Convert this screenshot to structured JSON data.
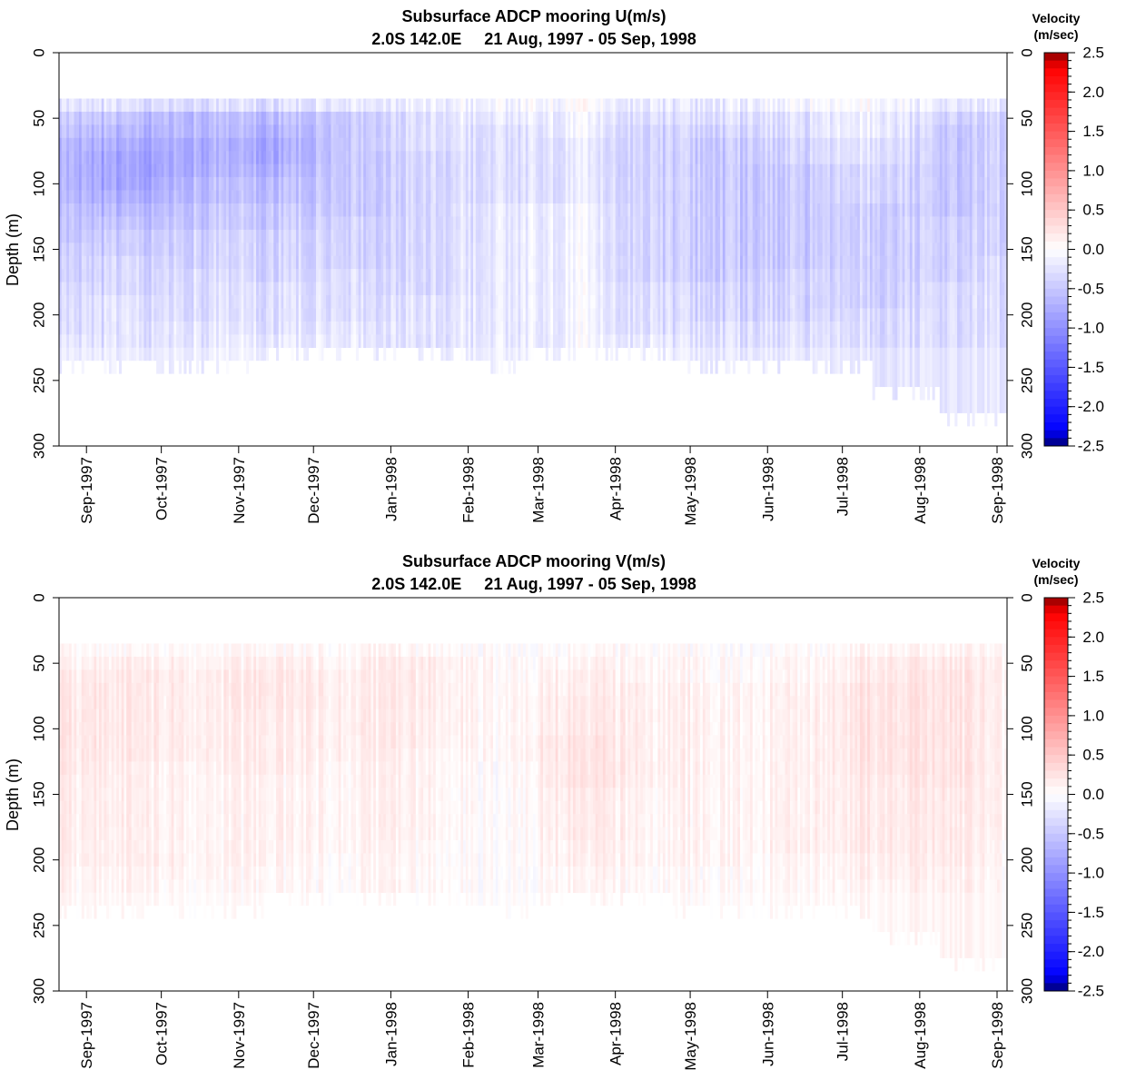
{
  "chart_data": [
    {
      "type": "heatmap",
      "component": "U",
      "title": "Subsurface ADCP mooring U(m/s)",
      "subtitle": "2.0S 142.0E     21 Aug, 1997 - 05 Sep, 1998",
      "ylabel": "Depth (m)",
      "xlabel": "",
      "date_range": [
        "1997-08-21",
        "1998-09-05"
      ],
      "ylim": [
        300,
        0
      ],
      "yticks": [
        0,
        50,
        100,
        150,
        200,
        250,
        300
      ],
      "xticks": [
        "Sep-1997",
        "Oct-1997",
        "Nov-1997",
        "Dec-1997",
        "Jan-1998",
        "Feb-1998",
        "Mar-1998",
        "Apr-1998",
        "May-1998",
        "Jun-1998",
        "Jul-1998",
        "Aug-1998",
        "Sep-1998"
      ],
      "xtick_dates": [
        "1997-09-01",
        "1997-10-01",
        "1997-11-01",
        "1997-12-01",
        "1998-01-01",
        "1998-02-01",
        "1998-03-01",
        "1998-04-01",
        "1998-05-01",
        "1998-06-01",
        "1998-07-01",
        "1998-08-01",
        "1998-09-01"
      ],
      "colorbar": {
        "title": [
          "Velocity",
          "(m/sec)"
        ],
        "range": [
          -2.5,
          2.5
        ],
        "ticks": [
          "2.5",
          "2.0",
          "1.5",
          "1.0",
          "0.5",
          "0.0",
          "-0.5",
          "-1.0",
          "-1.5",
          "-2.0",
          "-2.5"
        ],
        "tick_values": [
          2.5,
          2.0,
          1.5,
          1.0,
          0.5,
          0.0,
          -0.5,
          -1.0,
          -1.5,
          -2.0,
          -2.5
        ]
      },
      "data_top_depth_m": 35,
      "depth_bins_m": [
        40,
        50,
        60,
        70,
        80,
        90,
        100,
        110,
        120,
        130,
        140,
        150,
        160,
        170,
        180,
        190,
        200,
        210,
        220
      ],
      "time_nodes": [
        "1997-08-21",
        "1997-09-15",
        "1997-10-15",
        "1997-11-15",
        "1997-12-15",
        "1998-01-15",
        "1998-02-15",
        "1998-03-15",
        "1998-04-15",
        "1998-05-15",
        "1998-06-15",
        "1998-07-15",
        "1998-08-15",
        "1998-09-05"
      ],
      "velocity_profiles_m_per_s": [
        [
          -0.2,
          -0.4,
          -0.5,
          -0.6,
          -0.6,
          -0.6,
          -0.6,
          -0.6,
          -0.5,
          -0.5,
          -0.5,
          -0.4,
          -0.4,
          -0.4,
          -0.3,
          -0.3,
          -0.3,
          -0.3,
          -0.2
        ],
        [
          -0.3,
          -0.6,
          -0.7,
          -0.8,
          -0.9,
          -0.9,
          -0.9,
          -0.8,
          -0.7,
          -0.6,
          -0.5,
          -0.5,
          -0.4,
          -0.4,
          -0.4,
          -0.3,
          -0.3,
          -0.3,
          -0.3
        ],
        [
          -0.3,
          -0.6,
          -0.6,
          -0.7,
          -0.7,
          -0.7,
          -0.6,
          -0.6,
          -0.5,
          -0.5,
          -0.4,
          -0.4,
          -0.4,
          -0.3,
          -0.3,
          -0.3,
          -0.3,
          -0.2,
          -0.2
        ],
        [
          -0.3,
          -0.6,
          -0.7,
          -0.8,
          -0.8,
          -0.7,
          -0.6,
          -0.6,
          -0.5,
          -0.5,
          -0.4,
          -0.4,
          -0.4,
          -0.4,
          -0.3,
          -0.3,
          -0.3,
          -0.3,
          -0.2
        ],
        [
          -0.2,
          -0.5,
          -0.5,
          -0.5,
          -0.5,
          -0.5,
          -0.5,
          -0.5,
          -0.5,
          -0.4,
          -0.4,
          -0.4,
          -0.4,
          -0.3,
          -0.3,
          -0.3,
          -0.3,
          -0.2,
          -0.2
        ],
        [
          -0.1,
          -0.2,
          -0.2,
          -0.2,
          -0.3,
          -0.3,
          -0.3,
          -0.3,
          -0.3,
          -0.3,
          -0.3,
          -0.3,
          -0.3,
          -0.3,
          -0.3,
          -0.2,
          -0.2,
          -0.2,
          -0.2
        ],
        [
          -0.1,
          -0.2,
          -0.3,
          -0.3,
          -0.3,
          -0.3,
          -0.3,
          -0.3,
          -0.2,
          -0.2,
          -0.2,
          -0.2,
          -0.2,
          -0.2,
          -0.2,
          -0.2,
          -0.2,
          -0.2,
          -0.2
        ],
        [
          0.0,
          -0.1,
          -0.1,
          -0.2,
          -0.2,
          -0.2,
          -0.2,
          -0.2,
          -0.1,
          -0.1,
          -0.1,
          -0.1,
          -0.1,
          -0.1,
          -0.1,
          -0.1,
          -0.1,
          -0.1,
          -0.1
        ],
        [
          -0.2,
          -0.3,
          -0.4,
          -0.4,
          -0.4,
          -0.4,
          -0.4,
          -0.4,
          -0.4,
          -0.4,
          -0.4,
          -0.4,
          -0.4,
          -0.4,
          -0.3,
          -0.3,
          -0.3,
          -0.3,
          -0.2
        ],
        [
          -0.2,
          -0.3,
          -0.4,
          -0.5,
          -0.5,
          -0.5,
          -0.5,
          -0.5,
          -0.5,
          -0.5,
          -0.5,
          -0.5,
          -0.5,
          -0.5,
          -0.4,
          -0.4,
          -0.4,
          -0.3,
          -0.3
        ],
        [
          -0.1,
          -0.3,
          -0.3,
          -0.4,
          -0.4,
          -0.5,
          -0.5,
          -0.5,
          -0.5,
          -0.5,
          -0.5,
          -0.5,
          -0.5,
          -0.4,
          -0.4,
          -0.4,
          -0.4,
          -0.3,
          -0.3
        ],
        [
          0.0,
          -0.1,
          -0.1,
          -0.2,
          -0.2,
          -0.3,
          -0.3,
          -0.3,
          -0.4,
          -0.4,
          -0.4,
          -0.4,
          -0.4,
          -0.4,
          -0.4,
          -0.4,
          -0.3,
          -0.3,
          -0.3
        ],
        [
          -0.2,
          -0.4,
          -0.5,
          -0.5,
          -0.5,
          -0.5,
          -0.5,
          -0.5,
          -0.5,
          -0.4,
          -0.4,
          -0.4,
          -0.4,
          -0.4,
          -0.3,
          -0.3,
          -0.3,
          -0.3,
          -0.3
        ],
        [
          -0.2,
          -0.4,
          -0.4,
          -0.4,
          -0.4,
          -0.4,
          -0.4,
          -0.4,
          -0.4,
          -0.4,
          -0.4,
          -0.4,
          -0.3,
          -0.3,
          -0.3,
          -0.3,
          -0.3,
          -0.3,
          -0.3
        ]
      ],
      "bottom_depth_nodes_m": [
        235,
        235,
        235,
        225,
        225,
        225,
        235,
        225,
        225,
        235,
        235,
        235,
        255,
        275,
        245
      ]
    },
    {
      "type": "heatmap",
      "component": "V",
      "title": "Subsurface ADCP mooring V(m/s)",
      "subtitle": "2.0S 142.0E     21 Aug, 1997 - 05 Sep, 1998",
      "ylabel": "Depth (m)",
      "xlabel": "",
      "date_range": [
        "1997-08-21",
        "1998-09-05"
      ],
      "ylim": [
        300,
        0
      ],
      "yticks": [
        0,
        50,
        100,
        150,
        200,
        250,
        300
      ],
      "xticks": [
        "Sep-1997",
        "Oct-1997",
        "Nov-1997",
        "Dec-1997",
        "Jan-1998",
        "Feb-1998",
        "Mar-1998",
        "Apr-1998",
        "May-1998",
        "Jun-1998",
        "Jul-1998",
        "Aug-1998",
        "Sep-1998"
      ],
      "xtick_dates": [
        "1997-09-01",
        "1997-10-01",
        "1997-11-01",
        "1997-12-01",
        "1998-01-01",
        "1998-02-01",
        "1998-03-01",
        "1998-04-01",
        "1998-05-01",
        "1998-06-01",
        "1998-07-01",
        "1998-08-01",
        "1998-09-01"
      ],
      "colorbar": {
        "title": [
          "Velocity",
          "(m/sec)"
        ],
        "range": [
          -2.5,
          2.5
        ],
        "ticks": [
          "2.5",
          "2.0",
          "1.5",
          "1.0",
          "0.5",
          "0.0",
          "-0.5",
          "-1.0",
          "-1.5",
          "-2.0",
          "-2.5"
        ],
        "tick_values": [
          2.5,
          2.0,
          1.5,
          1.0,
          0.5,
          0.0,
          -0.5,
          -1.0,
          -1.5,
          -2.0,
          -2.5
        ]
      },
      "data_top_depth_m": 35,
      "depth_bins_m": [
        40,
        50,
        60,
        70,
        80,
        90,
        100,
        110,
        120,
        130,
        140,
        150,
        160,
        170,
        180,
        190,
        200,
        210,
        220
      ],
      "time_nodes": [
        "1997-08-21",
        "1997-09-15",
        "1997-10-15",
        "1997-11-15",
        "1997-12-15",
        "1998-01-15",
        "1998-02-15",
        "1998-03-15",
        "1998-04-15",
        "1998-05-15",
        "1998-06-15",
        "1998-07-15",
        "1998-08-15",
        "1998-09-05"
      ],
      "velocity_profiles_m_per_s": [
        [
          0.05,
          0.1,
          0.15,
          0.2,
          0.2,
          0.2,
          0.2,
          0.2,
          0.2,
          0.2,
          0.15,
          0.15,
          0.15,
          0.15,
          0.15,
          0.15,
          0.15,
          0.1,
          0.1
        ],
        [
          0.05,
          0.15,
          0.2,
          0.2,
          0.2,
          0.2,
          0.2,
          0.2,
          0.2,
          0.15,
          0.15,
          0.15,
          0.15,
          0.15,
          0.15,
          0.15,
          0.15,
          0.1,
          0.1
        ],
        [
          0.05,
          0.1,
          0.15,
          0.15,
          0.15,
          0.15,
          0.15,
          0.15,
          0.15,
          0.1,
          0.1,
          0.1,
          0.1,
          0.1,
          0.1,
          0.1,
          0.1,
          0.1,
          0.05
        ],
        [
          0.05,
          0.15,
          0.2,
          0.2,
          0.2,
          0.15,
          0.15,
          0.15,
          0.15,
          0.15,
          0.1,
          0.1,
          0.1,
          0.1,
          0.1,
          0.1,
          0.1,
          0.05,
          0.05
        ],
        [
          0.05,
          0.1,
          0.15,
          0.15,
          0.15,
          0.15,
          0.15,
          0.15,
          0.15,
          0.1,
          0.1,
          0.1,
          0.1,
          0.1,
          0.1,
          0.1,
          0.05,
          0.05,
          0.05
        ],
        [
          0.05,
          0.15,
          0.15,
          0.15,
          0.15,
          0.15,
          0.15,
          0.15,
          0.1,
          0.1,
          0.1,
          0.1,
          0.1,
          0.1,
          0.1,
          0.05,
          0.05,
          0.05,
          0.05
        ],
        [
          0.0,
          0.05,
          0.05,
          0.05,
          0.05,
          0.05,
          0.05,
          0.05,
          0.05,
          0.0,
          0.0,
          0.0,
          0.0,
          0.0,
          0.0,
          0.0,
          0.0,
          0.0,
          0.0
        ],
        [
          0.05,
          0.1,
          0.15,
          0.15,
          0.2,
          0.2,
          0.2,
          0.25,
          0.25,
          0.25,
          0.25,
          0.2,
          0.2,
          0.2,
          0.2,
          0.15,
          0.15,
          0.1,
          0.1
        ],
        [
          0.05,
          0.1,
          0.1,
          0.15,
          0.15,
          0.15,
          0.15,
          0.15,
          0.15,
          0.15,
          0.15,
          0.1,
          0.1,
          0.1,
          0.1,
          0.1,
          0.1,
          0.05,
          0.05
        ],
        [
          0.0,
          0.05,
          0.05,
          0.1,
          0.1,
          0.1,
          0.1,
          0.1,
          0.1,
          0.1,
          0.1,
          0.1,
          0.1,
          0.1,
          0.1,
          0.1,
          0.1,
          0.05,
          0.05
        ],
        [
          0.05,
          0.1,
          0.1,
          0.15,
          0.15,
          0.15,
          0.15,
          0.15,
          0.15,
          0.15,
          0.15,
          0.15,
          0.15,
          0.15,
          0.15,
          0.15,
          0.1,
          0.1,
          0.1
        ],
        [
          0.1,
          0.2,
          0.2,
          0.25,
          0.25,
          0.25,
          0.25,
          0.25,
          0.25,
          0.25,
          0.2,
          0.2,
          0.2,
          0.2,
          0.2,
          0.2,
          0.15,
          0.15,
          0.1
        ],
        [
          0.1,
          0.2,
          0.25,
          0.25,
          0.25,
          0.25,
          0.25,
          0.25,
          0.25,
          0.25,
          0.25,
          0.2,
          0.2,
          0.2,
          0.2,
          0.2,
          0.2,
          0.15,
          0.15
        ],
        [
          0.05,
          0.1,
          0.1,
          0.1,
          0.1,
          0.1,
          0.1,
          0.1,
          0.1,
          0.1,
          0.1,
          0.1,
          0.1,
          0.1,
          0.1,
          0.05,
          0.05,
          0.05,
          0.05
        ]
      ],
      "bottom_depth_nodes_m": [
        235,
        235,
        235,
        225,
        225,
        225,
        235,
        225,
        225,
        235,
        235,
        235,
        255,
        275,
        245
      ]
    }
  ]
}
